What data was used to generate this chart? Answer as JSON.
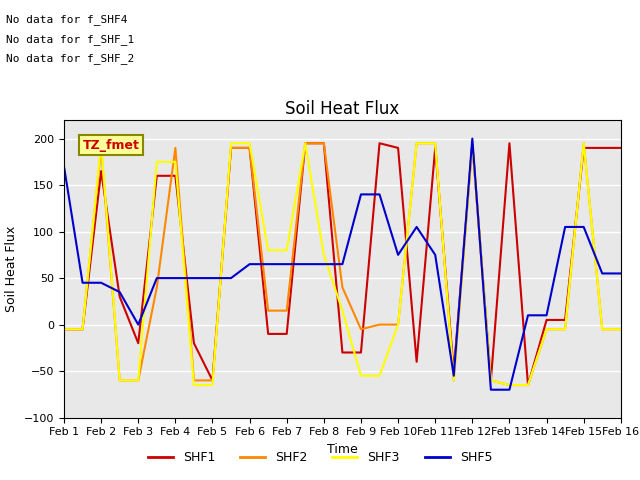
{
  "title": "Soil Heat Flux",
  "ylabel": "Soil Heat Flux",
  "xlabel": "Time",
  "ylim": [
    -100,
    220
  ],
  "xlim": [
    0,
    15
  ],
  "xtick_labels": [
    "Feb 1",
    "Feb 2",
    "Feb 3",
    "Feb 4",
    "Feb 5",
    "Feb 6",
    "Feb 7",
    "Feb 8",
    "Feb 9",
    "Feb 10",
    "Feb 11",
    "Feb 12",
    "Feb 13",
    "Feb 14",
    "Feb 15",
    "Feb 16"
  ],
  "annotations": [
    "No data for f_SHF4",
    "No data for f_SHF_1",
    "No data for f_SHF_2"
  ],
  "tz_label": "TZ_fmet",
  "series": {
    "SHF1": {
      "color": "#cc0000",
      "x": [
        0,
        0.5,
        1,
        1.5,
        2,
        2.5,
        3,
        3.5,
        4,
        4.5,
        5,
        5.5,
        6,
        6.5,
        7,
        7.5,
        8,
        8.5,
        9,
        9.5,
        10,
        10.5,
        11,
        11.5,
        12,
        12.5,
        13,
        13.5,
        14,
        14.5,
        15
      ],
      "y": [
        -5,
        -5,
        165,
        30,
        -20,
        160,
        160,
        -20,
        -60,
        190,
        190,
        -10,
        -10,
        195,
        195,
        -30,
        -30,
        195,
        190,
        -40,
        190,
        -50,
        195,
        -60,
        195,
        -65,
        5,
        5,
        190,
        190,
        190
      ]
    },
    "SHF2": {
      "color": "#ff8800",
      "x": [
        0,
        0.5,
        1,
        1.5,
        2,
        2.5,
        3,
        3.5,
        4,
        4.5,
        5,
        5.5,
        6,
        6.5,
        7,
        7.5,
        8,
        8.5,
        9,
        9.5,
        10,
        10.5,
        11,
        11.5,
        12,
        12.5,
        13,
        13.5,
        14,
        14.5,
        15
      ],
      "y": [
        -5,
        -5,
        190,
        -60,
        -60,
        40,
        190,
        -60,
        -60,
        190,
        190,
        15,
        15,
        195,
        195,
        40,
        -5,
        0,
        0,
        195,
        195,
        -60,
        195,
        -60,
        -65,
        -65,
        -5,
        -5,
        195,
        -5,
        -5
      ]
    },
    "SHF3": {
      "color": "#ffff00",
      "x": [
        0,
        0.5,
        1,
        1.5,
        2,
        2.5,
        3,
        3.5,
        4,
        4.5,
        5,
        5.5,
        6,
        6.5,
        7,
        7.5,
        8,
        8.5,
        9,
        9.5,
        10,
        10.5,
        11,
        11.5,
        12,
        12.5,
        13,
        13.5,
        14,
        14.5,
        15
      ],
      "y": [
        -5,
        -5,
        195,
        -60,
        -60,
        175,
        175,
        -65,
        -65,
        195,
        195,
        80,
        80,
        195,
        75,
        15,
        -55,
        -55,
        0,
        195,
        195,
        -60,
        195,
        -60,
        -65,
        -65,
        -5,
        -5,
        195,
        -5,
        -5
      ]
    },
    "SHF5": {
      "color": "#0000cc",
      "x": [
        0,
        0.5,
        1,
        1.5,
        2,
        2.5,
        3,
        3.5,
        4,
        4.5,
        5,
        5.5,
        6,
        6.5,
        7,
        7.5,
        8,
        8.5,
        9,
        9.5,
        10,
        10.5,
        11,
        11.5,
        12,
        12.5,
        13,
        13.5,
        14,
        14.5,
        15
      ],
      "y": [
        170,
        45,
        45,
        35,
        0,
        50,
        50,
        50,
        50,
        50,
        65,
        65,
        65,
        65,
        65,
        65,
        140,
        140,
        75,
        105,
        75,
        -55,
        200,
        -70,
        -70,
        10,
        10,
        105,
        105,
        55,
        55
      ]
    }
  },
  "background_color": "#e8e8e8",
  "grid_color": "#ffffff",
  "yticks": [
    -100,
    -50,
    0,
    50,
    100,
    150,
    200
  ],
  "figure_bg": "#ffffff",
  "ann_fontsize": 8,
  "title_fontsize": 12,
  "axis_label_fontsize": 9,
  "tick_fontsize": 8,
  "legend_fontsize": 9,
  "linewidth": 1.5
}
